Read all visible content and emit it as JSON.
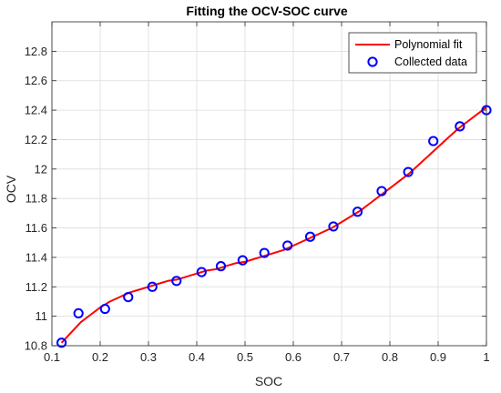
{
  "chart_data": {
    "type": "line",
    "title": "Fitting the OCV-SOC curve",
    "xlabel": "SOC",
    "ylabel": "OCV",
    "xlim": [
      0.1,
      1.0
    ],
    "ylim": [
      10.8,
      13.0
    ],
    "xticks": [
      "0.1",
      "0.2",
      "0.3",
      "0.4",
      "0.5",
      "0.6",
      "0.7",
      "0.8",
      "0.9",
      "1"
    ],
    "yticks": [
      "10.8",
      "11",
      "11.2",
      "11.4",
      "11.6",
      "11.8",
      "12",
      "12.2",
      "12.4",
      "12.6",
      "12.8"
    ],
    "grid": true,
    "legend_position": "top-right",
    "series": [
      {
        "name": "Polynomial fit",
        "kind": "line",
        "color": "#ff0000",
        "x": [
          0.12,
          0.14,
          0.16,
          0.18,
          0.2,
          0.22,
          0.24,
          0.26,
          0.28,
          0.3,
          0.32,
          0.34,
          0.36,
          0.38,
          0.4,
          0.42,
          0.44,
          0.46,
          0.48,
          0.5,
          0.52,
          0.54,
          0.56,
          0.58,
          0.6,
          0.62,
          0.64,
          0.66,
          0.68,
          0.7,
          0.72,
          0.74,
          0.76,
          0.78,
          0.8,
          0.82,
          0.84,
          0.86,
          0.88,
          0.9,
          0.92,
          0.94,
          0.96,
          0.98,
          1.0
        ],
        "y": [
          10.82,
          10.89,
          10.96,
          11.01,
          11.06,
          11.1,
          11.13,
          11.16,
          11.18,
          11.2,
          11.22,
          11.24,
          11.25,
          11.27,
          11.29,
          11.31,
          11.32,
          11.34,
          11.36,
          11.37,
          11.39,
          11.41,
          11.43,
          11.45,
          11.48,
          11.51,
          11.54,
          11.57,
          11.6,
          11.64,
          11.68,
          11.72,
          11.77,
          11.82,
          11.87,
          11.92,
          11.97,
          12.03,
          12.09,
          12.15,
          12.21,
          12.27,
          12.32,
          12.37,
          12.42
        ]
      },
      {
        "name": "Collected data",
        "kind": "scatter",
        "color": "#0000ff",
        "x": [
          0.12,
          0.155,
          0.21,
          0.258,
          0.308,
          0.358,
          0.41,
          0.45,
          0.495,
          0.54,
          0.588,
          0.635,
          0.683,
          0.733,
          0.783,
          0.838,
          0.89,
          0.945,
          1.0
        ],
        "y": [
          10.82,
          11.02,
          11.05,
          11.13,
          11.2,
          11.24,
          11.3,
          11.34,
          11.38,
          11.43,
          11.48,
          11.54,
          11.61,
          11.71,
          11.85,
          11.98,
          12.19,
          12.29,
          12.4
        ]
      }
    ]
  }
}
